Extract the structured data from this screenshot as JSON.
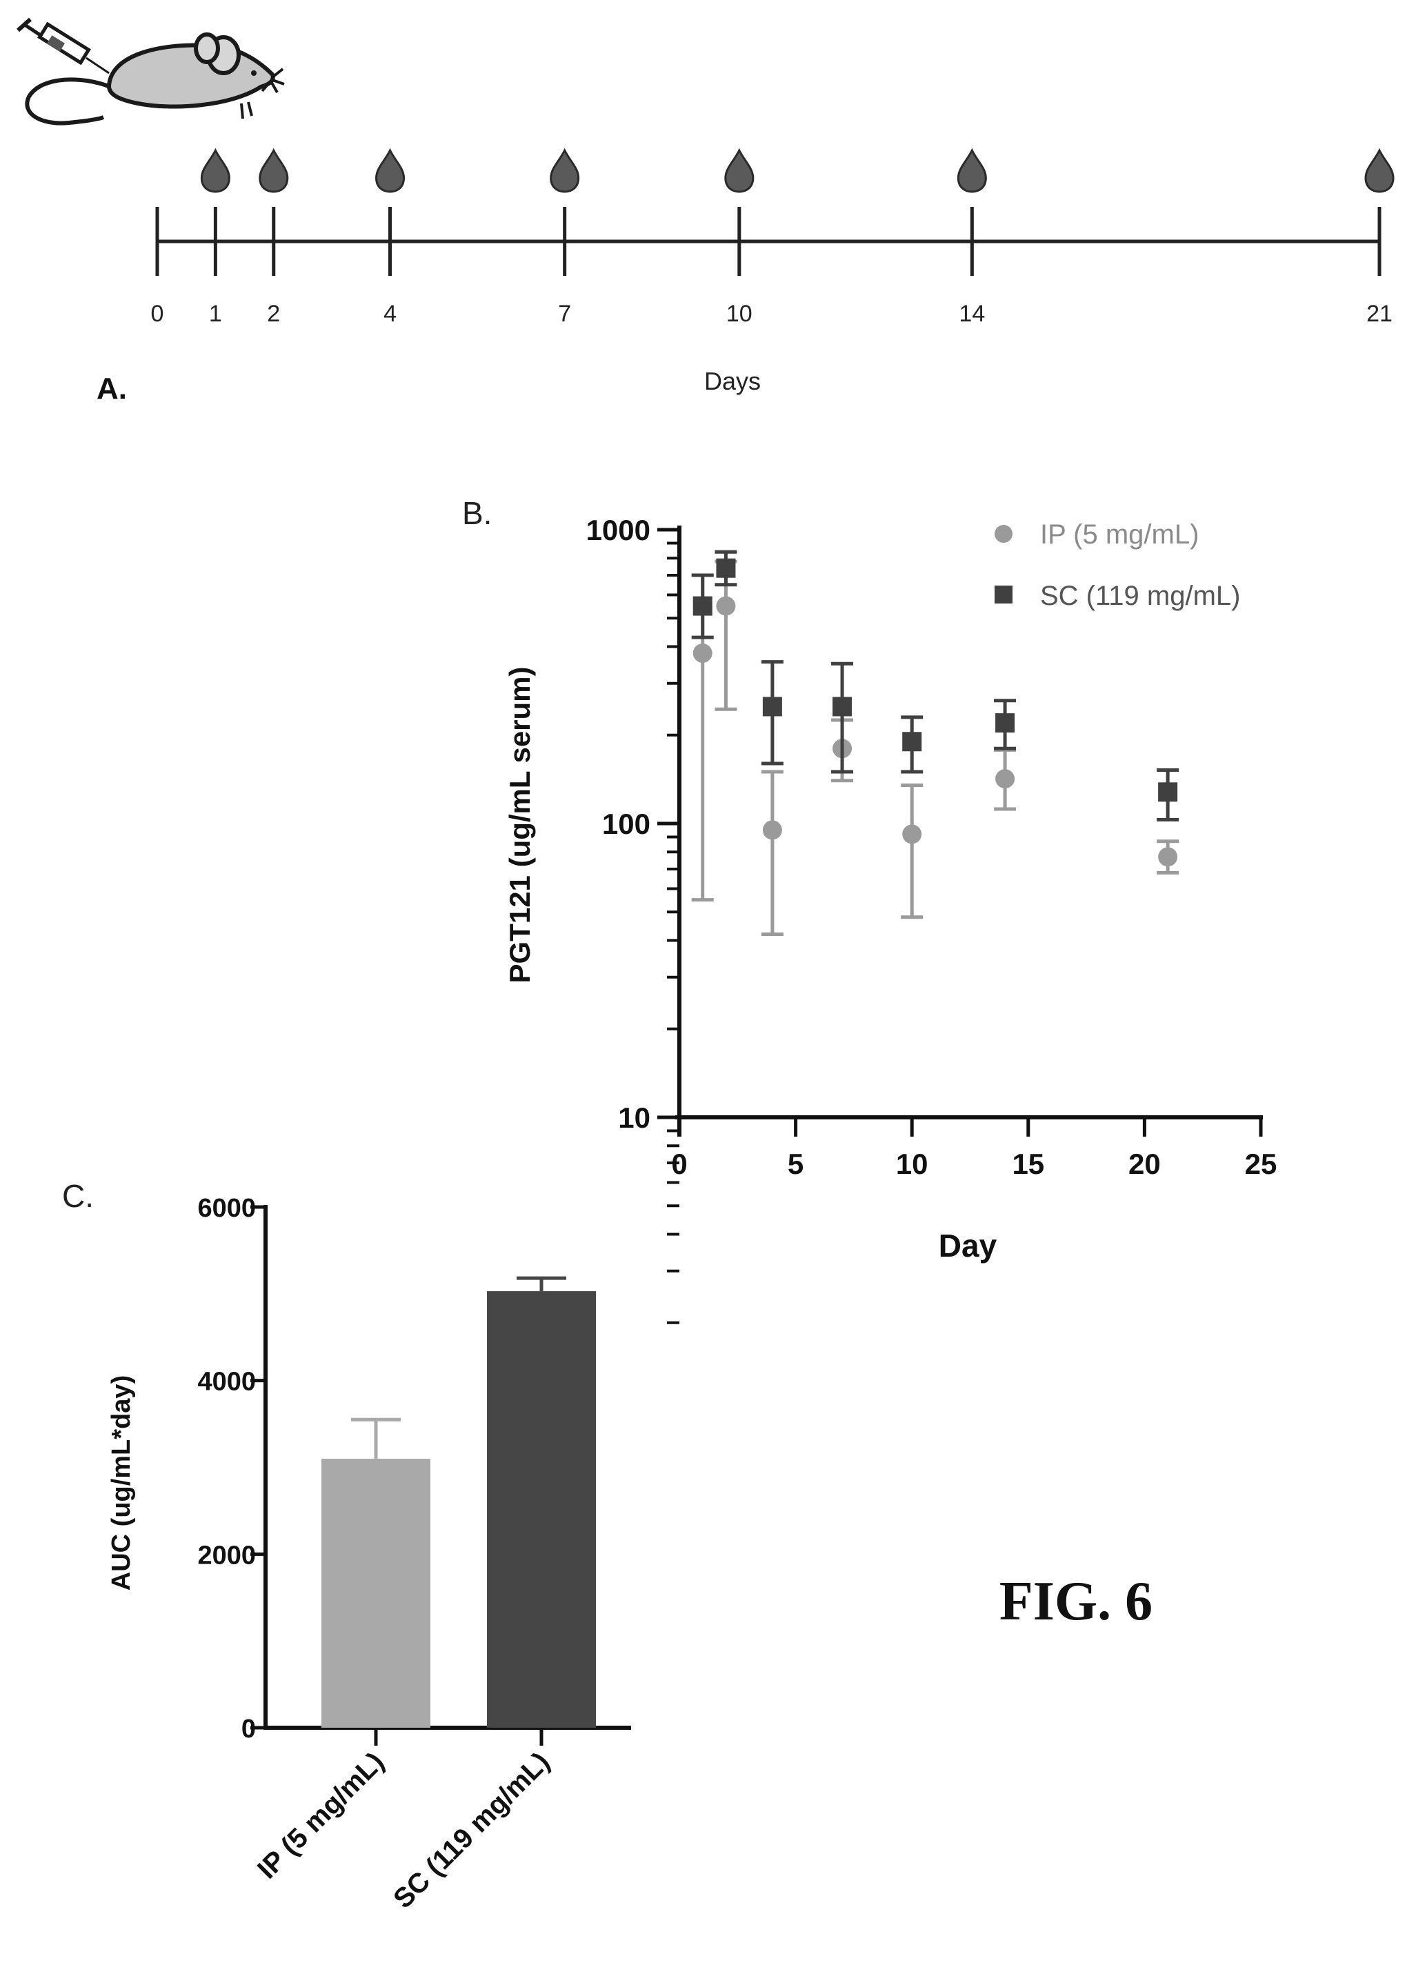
{
  "panel_a": {
    "label": "A.",
    "axis_label": "Days",
    "sample_days": [
      1,
      2,
      4,
      7,
      10,
      14,
      21
    ],
    "tick_days": [
      0,
      1,
      2,
      4,
      7,
      10,
      14,
      21
    ],
    "tick_labels": [
      "0",
      "1",
      "2",
      "4",
      "7",
      "10",
      "14",
      "21"
    ],
    "icons": [
      "mouse-icon",
      "syringe-icon",
      "blood-drop-icon"
    ]
  },
  "figure_label": "FIG. 6",
  "chart_data": [
    {
      "type": "scatter",
      "panel_label": "B.",
      "title": "",
      "xlabel": "Day",
      "ylabel": "PGT121 (ug/mL serum)",
      "xlim": [
        0,
        25
      ],
      "ylim": [
        10,
        1000
      ],
      "yscale": "log",
      "xticks": [
        0,
        5,
        10,
        15,
        20,
        25
      ],
      "xtick_labels": [
        "0",
        "5",
        "10",
        "15",
        "20",
        "25"
      ],
      "yticks": [
        10,
        100,
        1000
      ],
      "ytick_labels": [
        "10",
        "100",
        "1000"
      ],
      "legend_position": "top-right",
      "series": [
        {
          "name": "IP (5 mg/mL)",
          "marker": "circle",
          "color": "#9a9a9a",
          "x": [
            1,
            2,
            4,
            7,
            10,
            14,
            21
          ],
          "y": [
            380,
            550,
            95,
            180,
            92,
            142,
            77
          ],
          "err_low": [
            55,
            245,
            42,
            140,
            48,
            112,
            68
          ],
          "err_high": [
            700,
            780,
            150,
            225,
            135,
            178,
            87
          ]
        },
        {
          "name": "SC (119 mg/mL)",
          "marker": "square",
          "color": "#404040",
          "x": [
            1,
            2,
            4,
            7,
            10,
            14,
            21
          ],
          "y": [
            550,
            740,
            250,
            250,
            190,
            220,
            128
          ],
          "err_low": [
            430,
            650,
            160,
            150,
            150,
            180,
            103
          ],
          "err_high": [
            700,
            840,
            355,
            350,
            230,
            262,
            152
          ]
        }
      ]
    },
    {
      "type": "bar",
      "panel_label": "C.",
      "title": "",
      "xlabel": "",
      "ylabel": "AUC (ug/mL*day)",
      "ylim": [
        0,
        6000
      ],
      "yticks": [
        0,
        2000,
        4000,
        6000
      ],
      "ytick_labels": [
        "0",
        "2000",
        "4000",
        "6000"
      ],
      "categories": [
        "IP (5 mg/mL)",
        "SC (119 mg/mL)"
      ],
      "values": [
        3100,
        5030
      ],
      "err_high": [
        3550,
        5180
      ],
      "colors": [
        "#a9a9a9",
        "#464646"
      ]
    }
  ]
}
